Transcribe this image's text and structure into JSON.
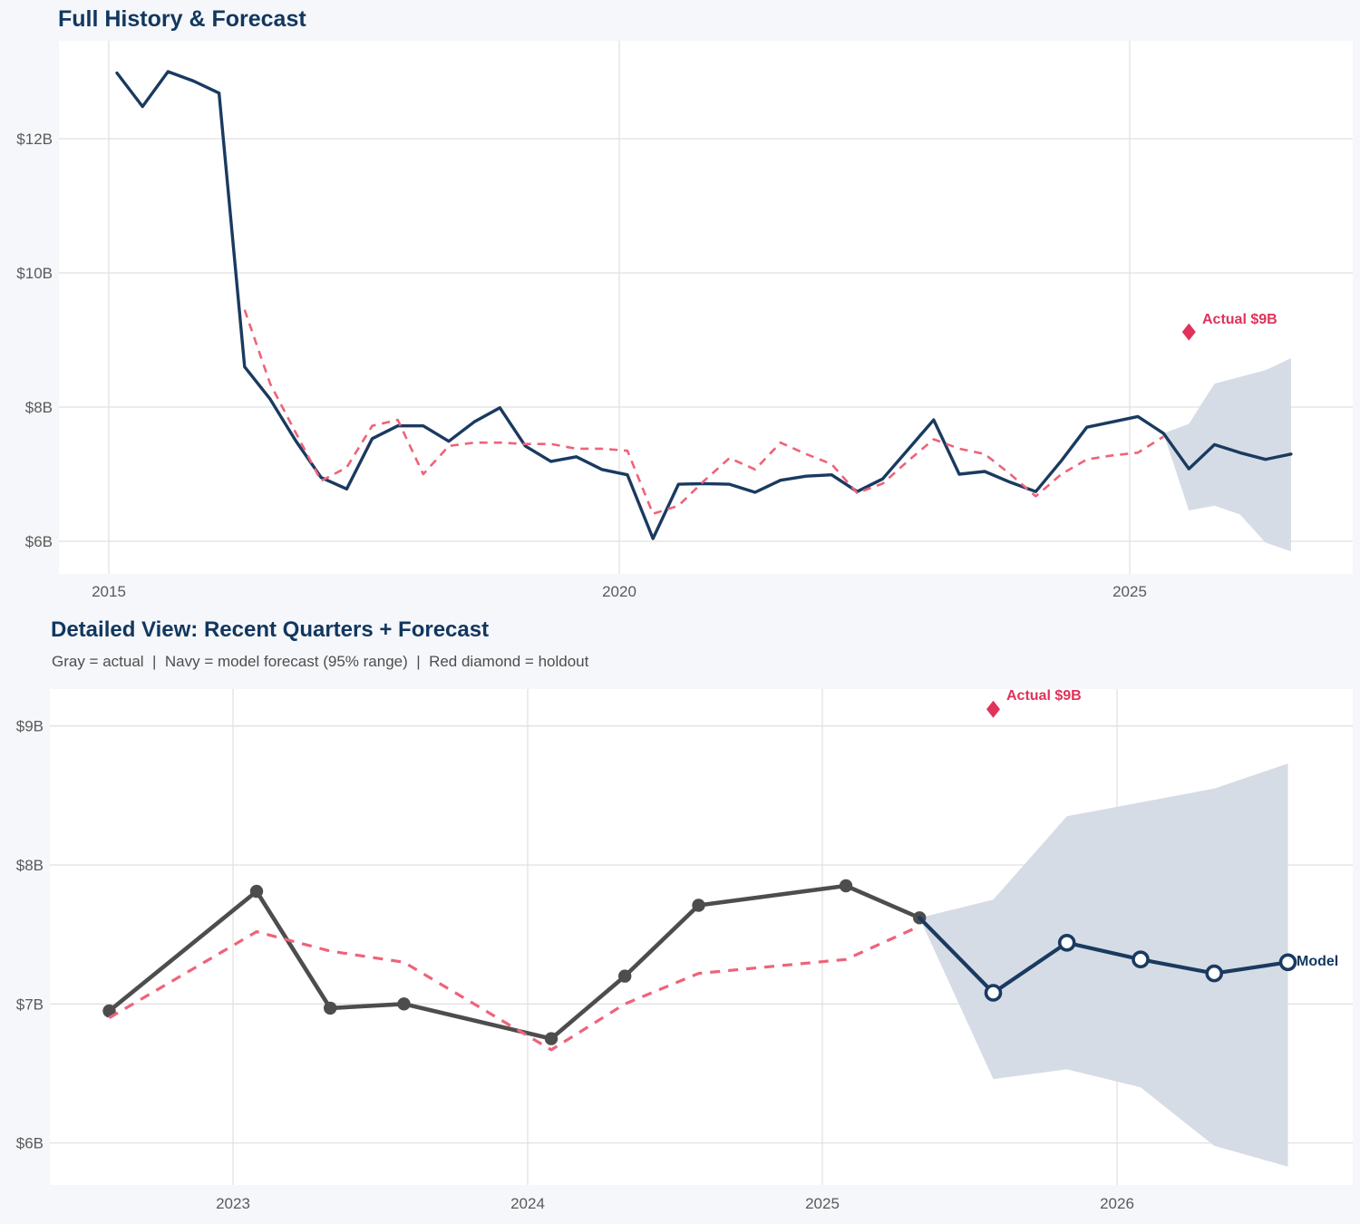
{
  "colors": {
    "page_background": "#f5f7fa",
    "plot_background": "#ffffff",
    "navy": "#1a3a60",
    "pink": "#ee6379",
    "red": "#e0325a",
    "band": "#d6dce5",
    "gray_line": "#4d4d4d",
    "grid": "#e1e1e1",
    "tick_text": "#5a5a5a",
    "title_navy": "#12375f"
  },
  "chart_data": [
    {
      "id": "full-history",
      "type": "line",
      "title": "Full History & Forecast",
      "x_ticks": [
        {
          "v": 2015,
          "label": "2015"
        },
        {
          "v": 2020,
          "label": "2020"
        },
        {
          "v": 2025,
          "label": "2025"
        }
      ],
      "y_ticks": [
        {
          "v": 12,
          "label": "$12B"
        },
        {
          "v": 10,
          "label": "$10B"
        },
        {
          "v": 8,
          "label": "$8B"
        },
        {
          "v": 6,
          "label": "$6B"
        }
      ],
      "xlim": [
        2014.5,
        2027.2
      ],
      "ylim": [
        5.5,
        13.5
      ],
      "forecast_start_x": 2025.33,
      "series": [
        {
          "name": "actual_and_forecast",
          "color_key": "navy",
          "style": "solid",
          "x": [
            2015.08,
            2015.33,
            2015.58,
            2015.83,
            2016.08,
            2016.33,
            2016.58,
            2016.83,
            2017.08,
            2017.33,
            2017.58,
            2017.83,
            2018.08,
            2018.33,
            2018.58,
            2018.83,
            2019.08,
            2019.33,
            2019.58,
            2019.83,
            2020.08,
            2020.33,
            2020.58,
            2020.83,
            2021.08,
            2021.33,
            2021.58,
            2021.83,
            2022.08,
            2022.33,
            2022.58,
            2022.83,
            2023.08,
            2023.33,
            2023.58,
            2023.83,
            2024.08,
            2024.33,
            2024.58,
            2024.83,
            2025.08,
            2025.33,
            2025.58,
            2025.83,
            2026.08,
            2026.33,
            2026.58
          ],
          "y": [
            12.98,
            12.48,
            13.0,
            12.86,
            12.68,
            8.6,
            8.12,
            7.5,
            6.95,
            6.78,
            7.53,
            7.72,
            7.72,
            7.49,
            7.78,
            7.99,
            7.42,
            7.19,
            7.26,
            7.07,
            6.99,
            6.04,
            6.85,
            6.86,
            6.85,
            6.73,
            6.91,
            6.97,
            6.99,
            6.74,
            6.93,
            7.37,
            7.81,
            7.0,
            7.04,
            6.88,
            6.74,
            7.2,
            7.7,
            7.78,
            7.86,
            7.61,
            7.08,
            7.44,
            7.32,
            7.22,
            7.3
          ]
        },
        {
          "name": "model_fit",
          "color_key": "pink",
          "style": "dashed",
          "x": [
            2016.33,
            2016.58,
            2016.83,
            2017.08,
            2017.33,
            2017.58,
            2017.83,
            2018.08,
            2018.33,
            2018.58,
            2018.83,
            2019.08,
            2019.33,
            2019.58,
            2019.83,
            2020.08,
            2020.33,
            2020.58,
            2020.83,
            2021.08,
            2021.33,
            2021.58,
            2021.83,
            2022.08,
            2022.33,
            2022.58,
            2022.83,
            2023.08,
            2023.33,
            2023.58,
            2023.83,
            2024.08,
            2024.33,
            2024.58,
            2024.83,
            2025.08,
            2025.33
          ],
          "y": [
            9.45,
            8.35,
            7.62,
            6.9,
            7.1,
            7.72,
            7.81,
            7.0,
            7.42,
            7.47,
            7.47,
            7.45,
            7.45,
            7.38,
            7.38,
            7.35,
            6.41,
            6.53,
            6.9,
            7.24,
            7.07,
            7.47,
            7.3,
            7.15,
            6.72,
            6.86,
            7.2,
            7.52,
            7.38,
            7.3,
            7.0,
            6.67,
            7.0,
            7.22,
            7.28,
            7.32,
            7.56
          ]
        }
      ],
      "band": {
        "x": [
          2025.33,
          2025.58,
          2025.83,
          2026.08,
          2026.33,
          2026.58
        ],
        "upper": [
          7.61,
          7.75,
          8.35,
          8.45,
          8.55,
          8.73
        ],
        "lower": [
          7.61,
          6.46,
          6.53,
          6.4,
          5.98,
          5.85
        ]
      },
      "annotations": [
        {
          "type": "diamond",
          "label": "Actual $9B",
          "x": 2025.58,
          "y": 9.12
        }
      ]
    },
    {
      "id": "detailed-view",
      "type": "line",
      "title": "Detailed View: Recent Quarters + Forecast",
      "subtitle": "Gray = actual  |  Navy = model forecast (95% range)  |  Red diamond = holdout",
      "x_ticks": [
        {
          "v": 2023,
          "label": "2023"
        },
        {
          "v": 2024,
          "label": "2024"
        },
        {
          "v": 2025,
          "label": "2025"
        },
        {
          "v": 2026,
          "label": "2026"
        }
      ],
      "y_ticks": [
        {
          "v": 9,
          "label": "$9B"
        },
        {
          "v": 8,
          "label": "$8B"
        },
        {
          "v": 7,
          "label": "$7B"
        },
        {
          "v": 6,
          "label": "$6B"
        }
      ],
      "xlim": [
        2022.38,
        2026.8
      ],
      "ylim": [
        5.7,
        9.27
      ],
      "series": [
        {
          "name": "actual",
          "color_key": "gray_line",
          "style": "solid_dots",
          "x": [
            2022.58,
            2023.08,
            2023.33,
            2023.58,
            2024.08,
            2024.33,
            2024.58,
            2025.08,
            2025.33
          ],
          "y": [
            6.95,
            7.81,
            6.97,
            7.0,
            6.75,
            7.2,
            7.71,
            7.85,
            7.62
          ]
        },
        {
          "name": "model_fit",
          "color_key": "pink",
          "style": "dashed",
          "x": [
            2022.58,
            2023.08,
            2023.33,
            2023.58,
            2024.08,
            2024.33,
            2024.58,
            2025.08,
            2025.33
          ],
          "y": [
            6.9,
            7.52,
            7.38,
            7.3,
            6.67,
            7.0,
            7.22,
            7.32,
            7.56
          ]
        },
        {
          "name": "model_forecast",
          "color_key": "navy",
          "style": "solid_open_dots",
          "end_label": "Model",
          "x": [
            2025.33,
            2025.58,
            2025.83,
            2026.08,
            2026.33,
            2026.58
          ],
          "y": [
            7.62,
            7.08,
            7.44,
            7.32,
            7.22,
            7.3
          ]
        }
      ],
      "band": {
        "x": [
          2025.33,
          2025.58,
          2025.83,
          2026.08,
          2026.33,
          2026.58
        ],
        "upper": [
          7.62,
          7.75,
          8.35,
          8.45,
          8.55,
          8.73
        ],
        "lower": [
          7.62,
          6.46,
          6.53,
          6.4,
          5.98,
          5.83
        ]
      },
      "annotations": [
        {
          "type": "diamond",
          "label": "Actual $9B",
          "x": 2025.58,
          "y": 9.12
        }
      ]
    }
  ]
}
